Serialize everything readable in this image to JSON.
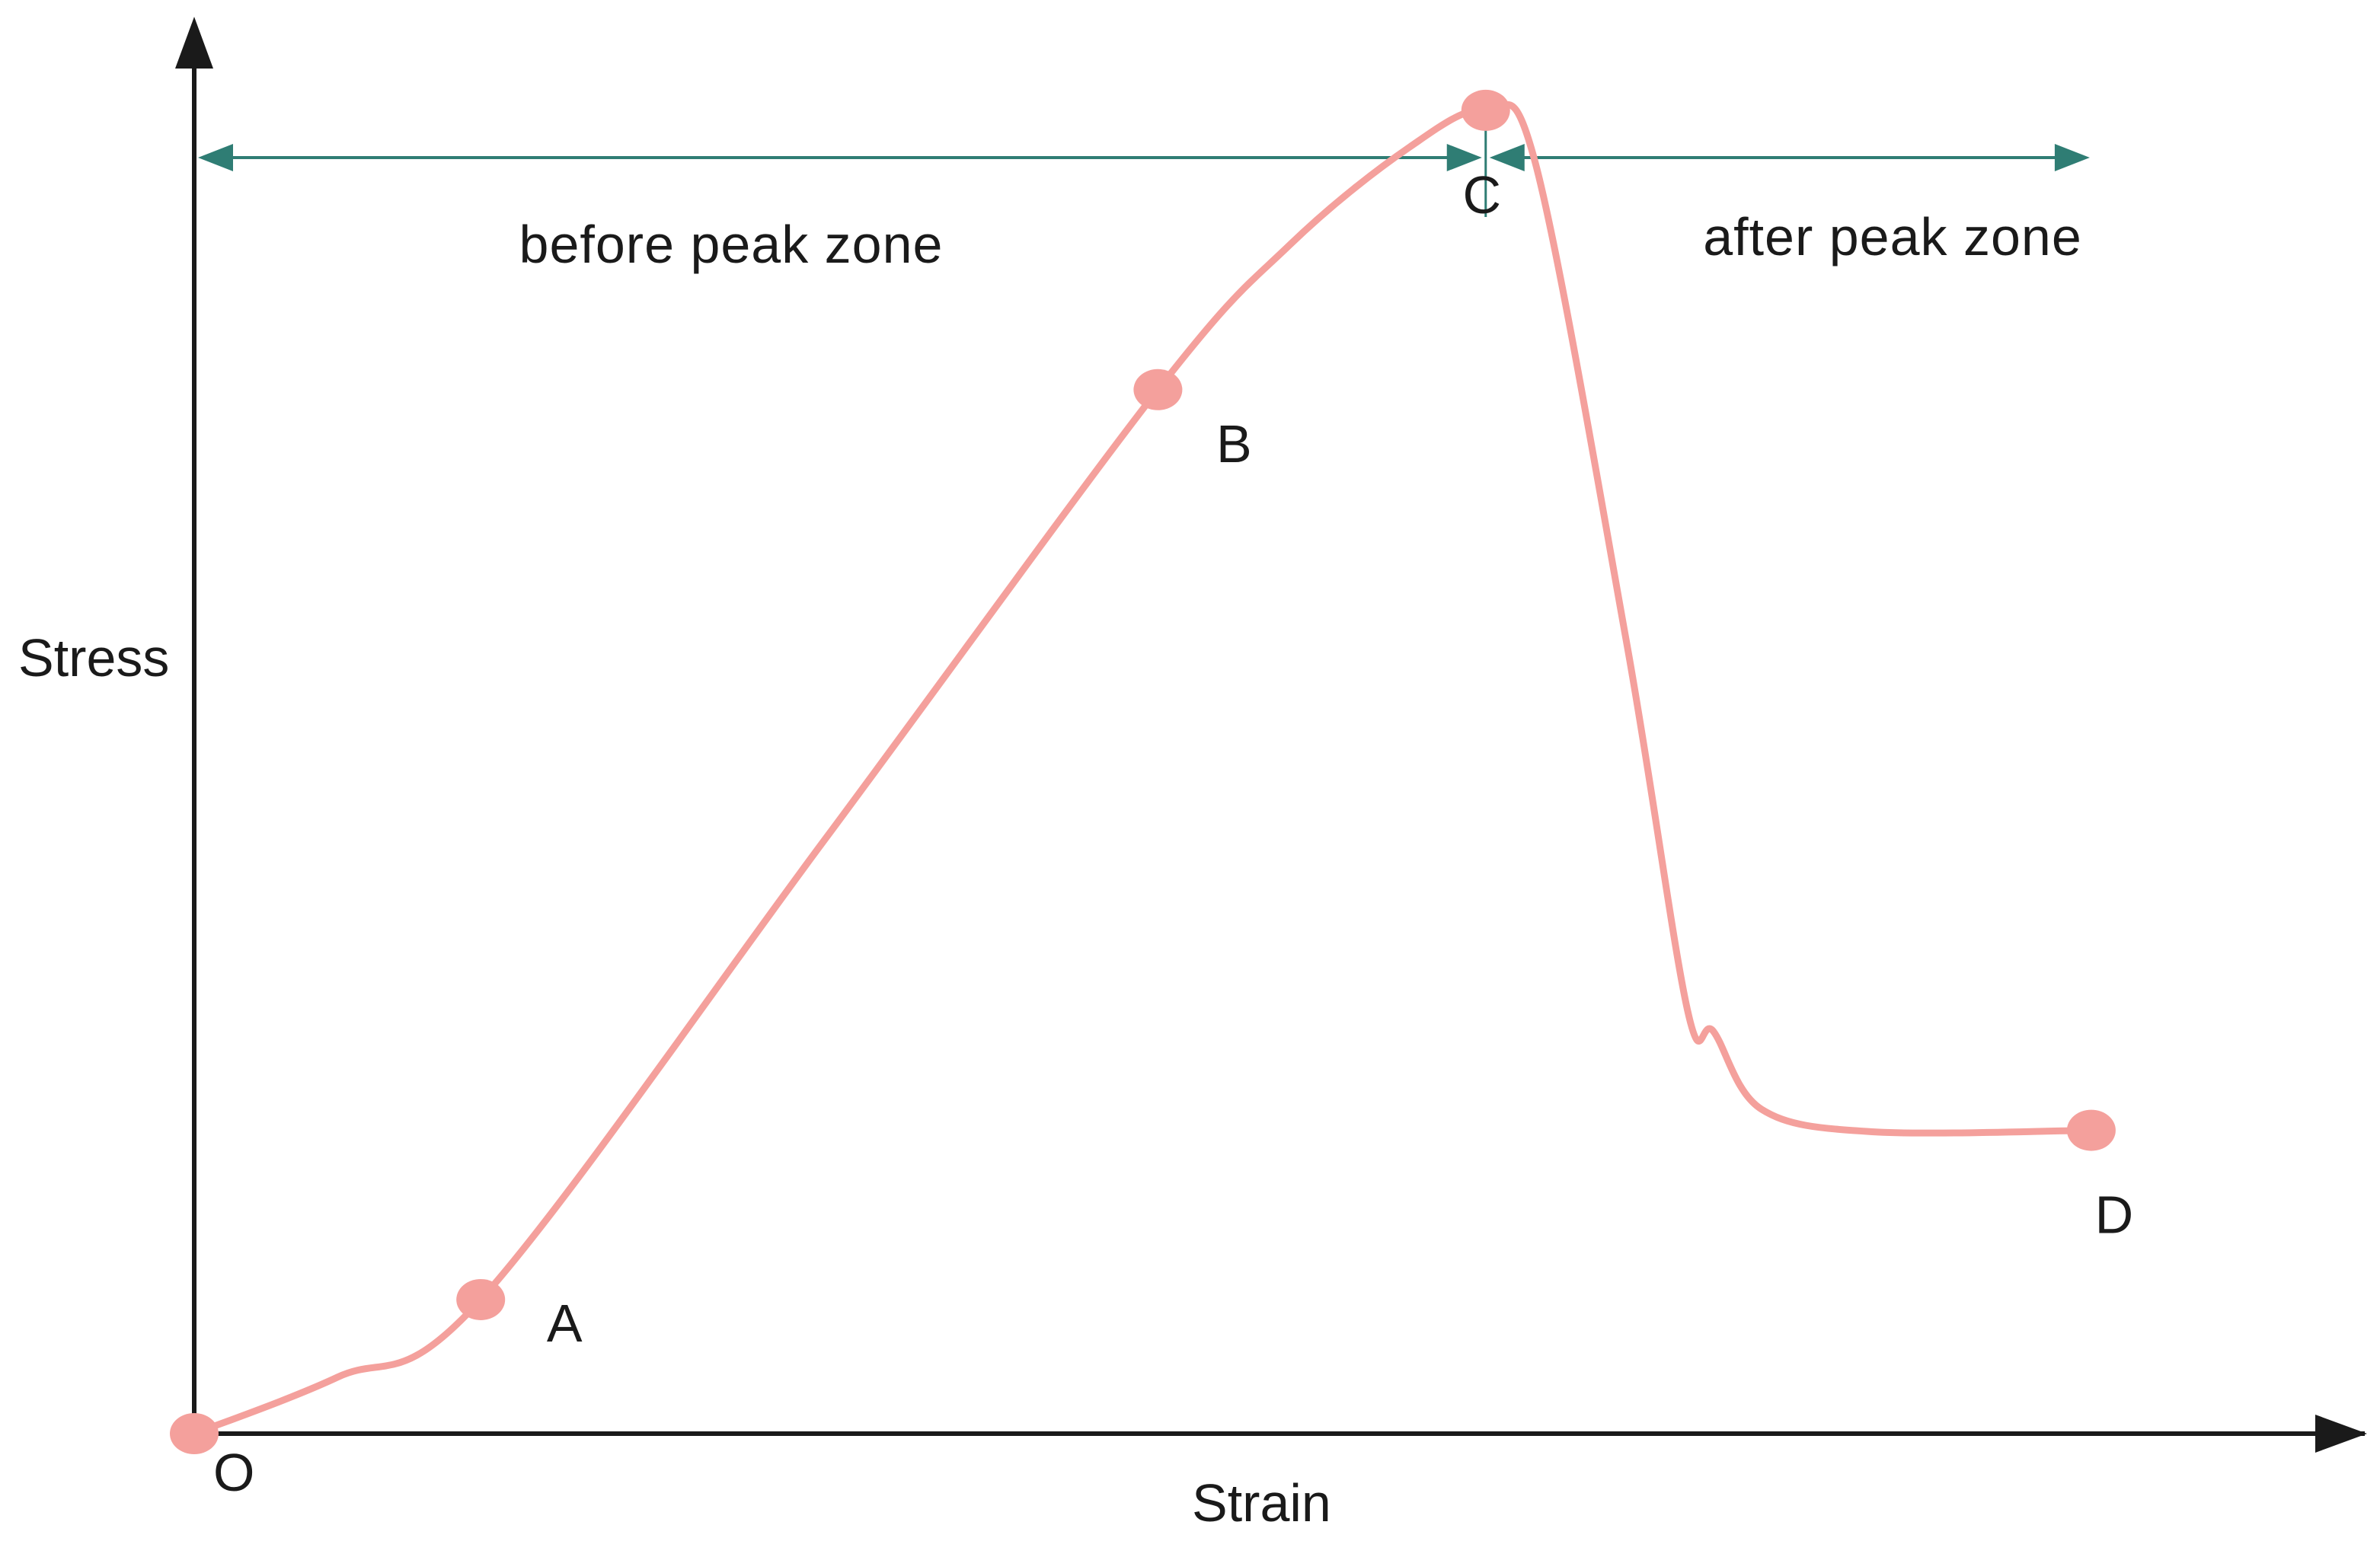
{
  "chart_data": {
    "type": "line",
    "title": "",
    "xlabel": "Strain",
    "ylabel": "Stress",
    "origin_label": "O",
    "grid": false,
    "xlim": [
      0,
      1
    ],
    "ylim": [
      0,
      1
    ],
    "colors": {
      "curve": "#f4a09c",
      "axis": "#1a1a1a",
      "zone": "#2f7d74"
    },
    "points": [
      {
        "name": "O",
        "x": 0.0,
        "y": 0.0
      },
      {
        "name": "A",
        "x": 0.132,
        "y": 0.095
      },
      {
        "name": "B",
        "x": 0.444,
        "y": 0.74
      },
      {
        "name": "C",
        "x": 0.595,
        "y": 0.938
      },
      {
        "name": "D",
        "x": 0.874,
        "y": 0.215
      }
    ],
    "curve": {
      "x": [
        0.0,
        0.066,
        0.132,
        0.29,
        0.444,
        0.505,
        0.56,
        0.595,
        0.618,
        0.66,
        0.688,
        0.7,
        0.722,
        0.773,
        0.874
      ],
      "y": [
        0.0,
        0.04,
        0.095,
        0.42,
        0.74,
        0.843,
        0.912,
        0.938,
        0.9,
        0.56,
        0.3,
        0.285,
        0.23,
        0.214,
        0.215
      ]
    },
    "zones": [
      {
        "label": "before peak zone",
        "x_start": 0.0,
        "x_end": 0.595
      },
      {
        "label": "after peak zone",
        "x_start": 0.595,
        "x_end": 0.874
      }
    ]
  }
}
